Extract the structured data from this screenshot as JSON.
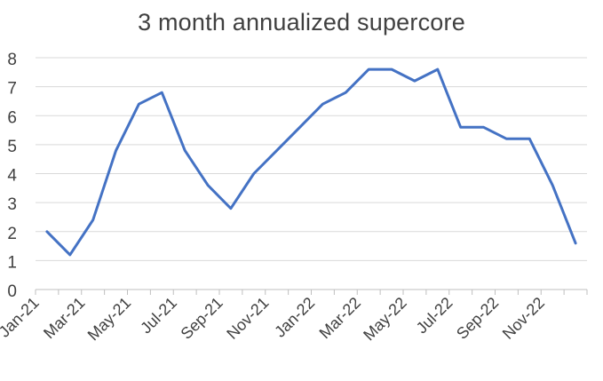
{
  "chart_data": {
    "type": "line",
    "title": "3 month annualized supercore",
    "xlabel": "",
    "ylabel": "",
    "ylim": [
      0,
      8
    ],
    "yticks": [
      0,
      1,
      2,
      3,
      4,
      5,
      6,
      7,
      8
    ],
    "grid": true,
    "legend": "none",
    "line_color": "#4472C4",
    "x": [
      "Jan-21",
      "Feb-21",
      "Mar-21",
      "Apr-21",
      "May-21",
      "Jun-21",
      "Jul-21",
      "Aug-21",
      "Sep-21",
      "Oct-21",
      "Nov-21",
      "Dec-21",
      "Jan-22",
      "Feb-22",
      "Mar-22",
      "Apr-22",
      "May-22",
      "Jun-22",
      "Jul-22",
      "Aug-22",
      "Sep-22",
      "Oct-22",
      "Nov-22",
      "Dec-22"
    ],
    "x_tick_labels": [
      "Jan-21",
      "Mar-21",
      "May-21",
      "Jul-21",
      "Sep-21",
      "Nov-21",
      "Jan-22",
      "Mar-22",
      "May-22",
      "Jul-22",
      "Sep-22",
      "Nov-22"
    ],
    "series": [
      {
        "values": [
          2.0,
          1.2,
          2.4,
          4.8,
          6.4,
          6.8,
          4.8,
          3.6,
          2.8,
          4.0,
          4.8,
          5.6,
          6.4,
          6.8,
          7.6,
          7.6,
          7.2,
          7.6,
          5.6,
          5.6,
          5.2,
          5.2,
          3.6,
          1.6
        ]
      }
    ]
  }
}
